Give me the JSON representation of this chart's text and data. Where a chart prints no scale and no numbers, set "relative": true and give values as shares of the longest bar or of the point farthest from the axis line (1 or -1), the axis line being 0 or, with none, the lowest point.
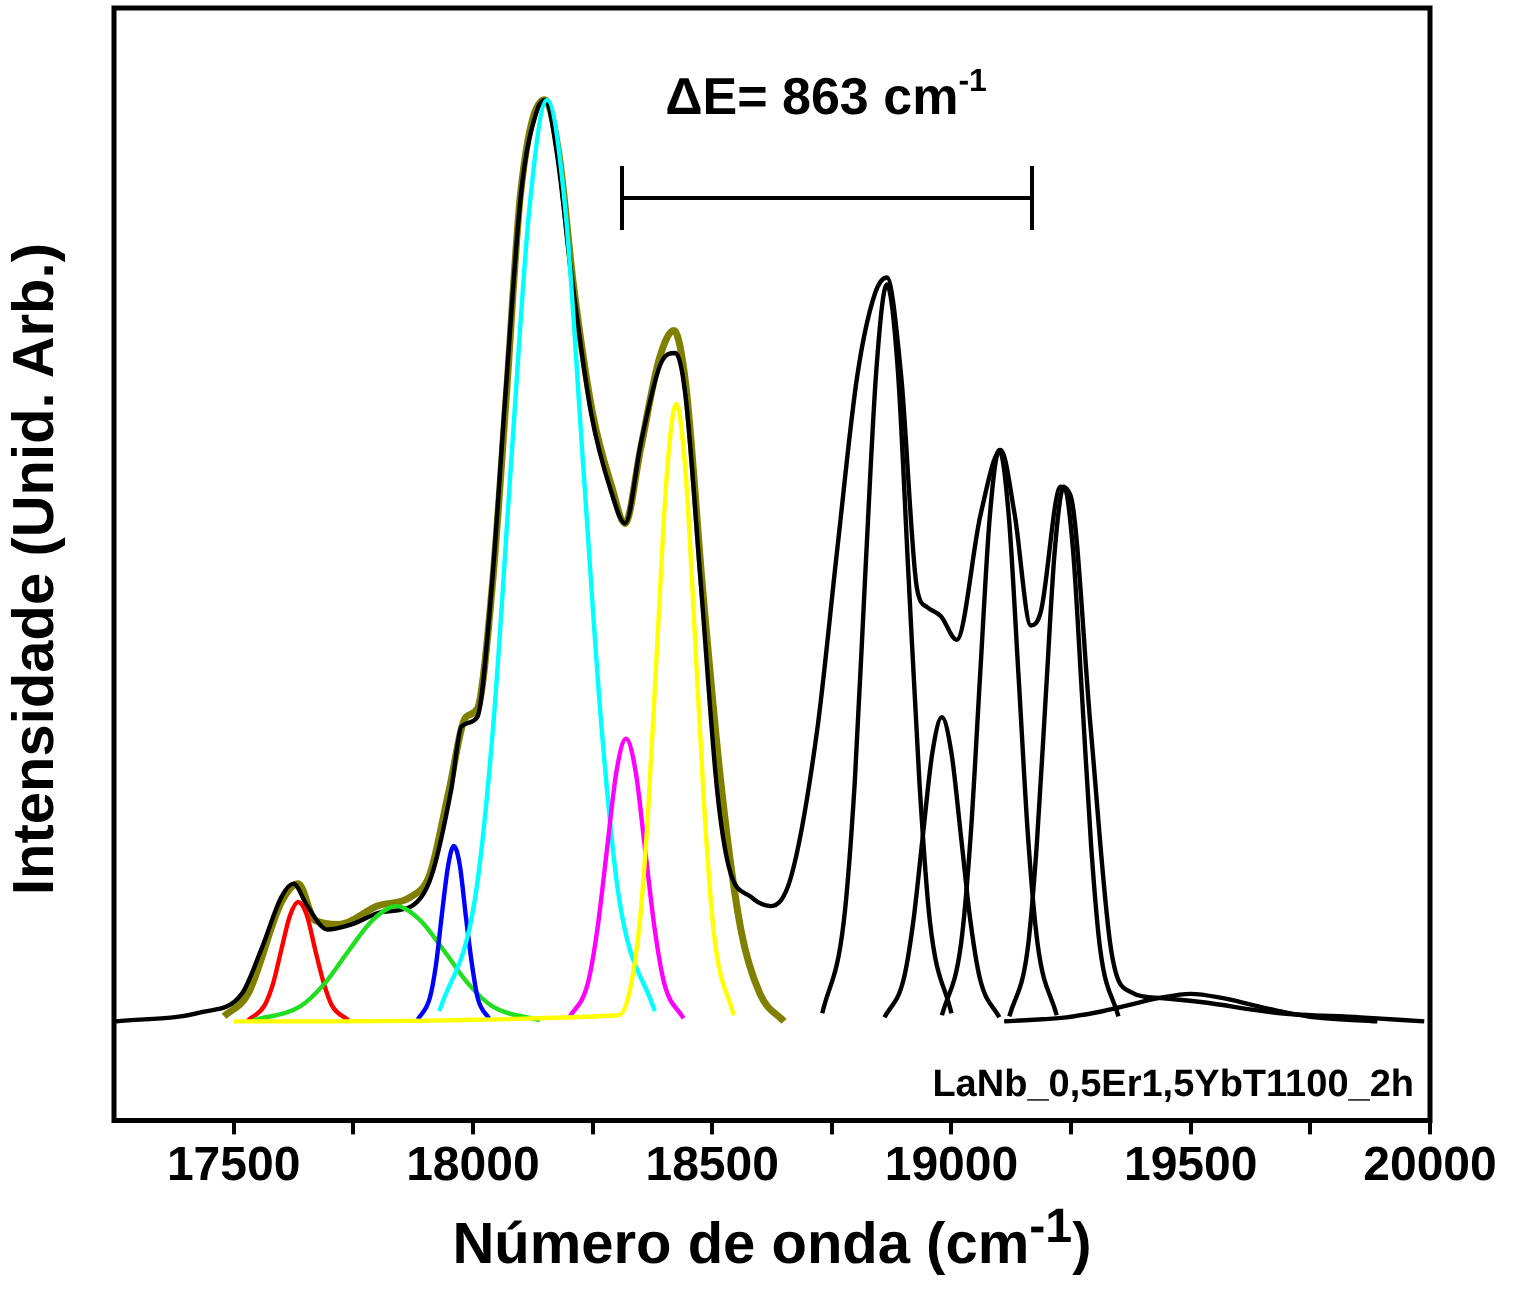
{
  "chart_data": {
    "type": "line",
    "relative": true,
    "xlabel": "Número de onda (cm$^{-1}$)",
    "ylabel": "Intensidade (Unid. Arb.)",
    "xlim": [
      17250,
      20000
    ],
    "xticks": [
      17500,
      {
        "value": 17750,
        "label": null
      },
      18000,
      {
        "value": 18250,
        "label": null
      },
      18500,
      {
        "value": 18750,
        "label": null
      },
      19000,
      {
        "value": 19250,
        "label": null
      },
      19500,
      {
        "value": 19750,
        "label": null
      },
      20000
    ],
    "marker": "none",
    "legend": false,
    "grid": false,
    "annotations": [
      "ΔE= 863 cm$^{-1}$",
      "LaNb_0,5Er1,5YbT1100_2h"
    ],
    "series": [
      {
        "color": "#808000",
        "x": [
          17480,
          17530,
          17600,
          17635,
          17670,
          17720,
          17800,
          17870,
          17910,
          17950,
          17985,
          18010,
          18040,
          18070,
          18100,
          18150,
          18180,
          18210,
          18250,
          18290,
          18318,
          18350,
          18390,
          18420,
          18445,
          18480,
          18520,
          18560,
          18600,
          18650
        ],
        "values": [
          0.102,
          0.124,
          0.214,
          0.232,
          0.196,
          0.192,
          0.21,
          0.219,
          0.241,
          0.323,
          0.395,
          0.404,
          0.521,
          0.711,
          0.91,
          1.0,
          0.946,
          0.819,
          0.693,
          0.621,
          0.585,
          0.657,
          0.747,
          0.774,
          0.72,
          0.521,
          0.323,
          0.187,
          0.124,
          0.097
        ]
      },
      {
        "color": "#000000",
        "x": [
          17254,
          17433,
          17517,
          17559,
          17600,
          17625,
          17654,
          17696,
          17746,
          17809,
          17872,
          17913,
          17955,
          17976,
          18009,
          18039,
          18068,
          18101,
          18135,
          18151,
          18176,
          18206,
          18247,
          18289,
          18318,
          18352,
          18394,
          18423,
          18444,
          18477,
          18510,
          18535,
          18581,
          18623,
          18665,
          18719,
          18761,
          18803,
          18840,
          18865,
          18895,
          18928,
          18949,
          18978,
          19011,
          19061,
          19103,
          19132,
          19166,
          19187,
          19228,
          19249,
          19291,
          19333,
          19374,
          19437,
          19521,
          19688,
          19855,
          19988
        ],
        "values": [
          0.097,
          0.106,
          0.124,
          0.169,
          0.219,
          0.232,
          0.21,
          0.187,
          0.192,
          0.204,
          0.21,
          0.239,
          0.325,
          0.386,
          0.395,
          0.521,
          0.711,
          0.91,
          0.991,
          1.0,
          0.946,
          0.828,
          0.693,
          0.616,
          0.585,
          0.666,
          0.743,
          0.752,
          0.711,
          0.521,
          0.325,
          0.248,
          0.219,
          0.21,
          0.239,
          0.381,
          0.558,
          0.729,
          0.81,
          0.826,
          0.729,
          0.521,
          0.503,
          0.494,
          0.471,
          0.594,
          0.657,
          0.594,
          0.485,
          0.499,
          0.621,
          0.612,
          0.384,
          0.169,
          0.126,
          0.12,
          0.116,
          0.105,
          0.101,
          0.097
        ]
      },
      {
        "color": "#ff0000",
        "x": [
          17530,
          17565,
          17583,
          17600,
          17618,
          17635,
          17653,
          17670,
          17688,
          17705,
          17740
        ],
        "values": [
          0.098,
          0.113,
          0.135,
          0.168,
          0.201,
          0.214,
          0.201,
          0.168,
          0.135,
          0.113,
          0.098
        ]
      },
      {
        "color": "#22dd22",
        "x": [
          17540,
          17640,
          17690,
          17740,
          17790,
          17840,
          17890,
          17940,
          17990,
          18040,
          18140
        ],
        "values": [
          0.098,
          0.112,
          0.134,
          0.166,
          0.196,
          0.21,
          0.196,
          0.166,
          0.134,
          0.112,
          0.098
        ]
      },
      {
        "color": "#0000ff",
        "x": [
          17885,
          17910,
          17923,
          17935,
          17948,
          17960,
          17973,
          17985,
          17998,
          18010,
          18035
        ],
        "values": [
          0.099,
          0.12,
          0.153,
          0.201,
          0.249,
          0.269,
          0.249,
          0.201,
          0.153,
          0.12,
          0.099
        ]
      },
      {
        "color": "#00ffff",
        "x": [
          17930,
          18005,
          18043,
          18080,
          18118,
          18155,
          18193,
          18230,
          18268,
          18305,
          18380
        ],
        "values": [
          0.107,
          0.219,
          0.39,
          0.645,
          0.893,
          1.0,
          0.893,
          0.645,
          0.39,
          0.219,
          0.107
        ]
      },
      {
        "color": "#ff00ff",
        "x": [
          18200,
          18240,
          18260,
          18280,
          18300,
          18320,
          18340,
          18360,
          18380,
          18400,
          18440
        ],
        "values": [
          0.1,
          0.134,
          0.187,
          0.265,
          0.342,
          0.374,
          0.342,
          0.265,
          0.187,
          0.134,
          0.1
        ]
      },
      {
        "color": "#ffff00",
        "x": [
          17500,
          18305,
          18345,
          18365,
          18385,
          18405,
          18425,
          18445,
          18465,
          18485,
          18505,
          18545
        ],
        "values": [
          0.097,
          0.103,
          0.178,
          0.294,
          0.465,
          0.631,
          0.702,
          0.631,
          0.465,
          0.294,
          0.178,
          0.103
        ]
      },
      {
        "color": "#000000",
        "x": [
          18730,
          18775,
          18798,
          18820,
          18843,
          18865,
          18888,
          18910,
          18933,
          18955,
          19000
        ],
        "values": [
          0.105,
          0.195,
          0.332,
          0.536,
          0.735,
          0.819,
          0.735,
          0.536,
          0.332,
          0.195,
          0.105
        ]
      },
      {
        "color": "#000000",
        "x": [
          18860,
          18900,
          18920,
          18940,
          18960,
          18980,
          19000,
          19020,
          19040,
          19060,
          19100
        ],
        "values": [
          0.101,
          0.138,
          0.194,
          0.278,
          0.36,
          0.395,
          0.36,
          0.278,
          0.194,
          0.138,
          0.101
        ]
      },
      {
        "color": "#000000",
        "x": [
          18980,
          19020,
          19040,
          19060,
          19080,
          19100,
          19120,
          19140,
          19160,
          19180,
          19220
        ],
        "values": [
          0.103,
          0.173,
          0.278,
          0.437,
          0.591,
          0.657,
          0.591,
          0.437,
          0.278,
          0.173,
          0.103
        ]
      },
      {
        "color": "#000000",
        "x": [
          19121,
          19159,
          19178,
          19197,
          19216,
          19235,
          19254,
          19273,
          19292,
          19311,
          19349
        ],
        "values": [
          0.102,
          0.167,
          0.268,
          0.415,
          0.559,
          0.621,
          0.559,
          0.415,
          0.268,
          0.167,
          0.102
        ]
      },
      {
        "color": "#000000",
        "x": [
          19110,
          19240,
          19305,
          19370,
          19435,
          19500,
          19565,
          19630,
          19695,
          19760,
          19890
        ],
        "values": [
          0.097,
          0.101,
          0.106,
          0.113,
          0.12,
          0.124,
          0.12,
          0.113,
          0.106,
          0.101,
          0.097
        ]
      }
    ]
  }
}
